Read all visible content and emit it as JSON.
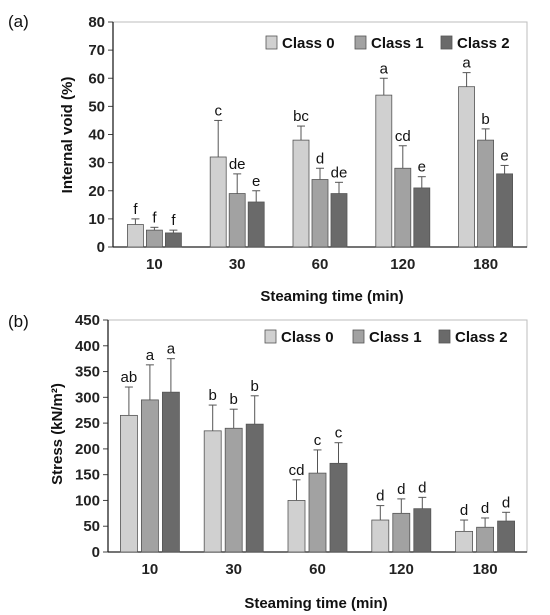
{
  "chart_data": [
    {
      "type": "bar",
      "panel_label": "(a)",
      "categories": [
        "10",
        "30",
        "60",
        "120",
        "180"
      ],
      "xlabel": "Steaming time (min)",
      "ylabel": "Internal void (%)",
      "ylim": [
        0,
        80
      ],
      "yticks": [
        "0",
        "10",
        "20",
        "30",
        "40",
        "50",
        "60",
        "70",
        "80"
      ],
      "legend_position": "top-right",
      "series": [
        {
          "name": "Class 0",
          "color": "#d0d0d0",
          "values": [
            8,
            32,
            38,
            54,
            57
          ],
          "errors": [
            2,
            13,
            5,
            6,
            5
          ],
          "letters": [
            "f",
            "c",
            "bc",
            "a",
            "a"
          ]
        },
        {
          "name": "Class 1",
          "color": "#a2a2a2",
          "values": [
            6,
            19,
            24,
            28,
            38
          ],
          "errors": [
            1,
            7,
            4,
            8,
            4
          ],
          "letters": [
            "f",
            "de",
            "d",
            "cd",
            "b"
          ]
        },
        {
          "name": "Class 2",
          "color": "#6a6a6a",
          "values": [
            5,
            16,
            19,
            21,
            26
          ],
          "errors": [
            1,
            4,
            4,
            4,
            3
          ],
          "letters": [
            "f",
            "e",
            "de",
            "e",
            "e"
          ]
        }
      ]
    },
    {
      "type": "bar",
      "panel_label": "(b)",
      "categories": [
        "10",
        "30",
        "60",
        "120",
        "180"
      ],
      "xlabel": "Steaming time (min)",
      "ylabel": "Stress (kN/m²)",
      "ylim": [
        0,
        450
      ],
      "yticks": [
        "0",
        "50",
        "100",
        "150",
        "200",
        "250",
        "300",
        "350",
        "400",
        "450"
      ],
      "legend_position": "top-right",
      "series": [
        {
          "name": "Class 0",
          "color": "#d0d0d0",
          "values": [
            265,
            235,
            100,
            62,
            40
          ],
          "errors": [
            55,
            50,
            40,
            28,
            22
          ],
          "letters": [
            "ab",
            "b",
            "cd",
            "d",
            "d"
          ]
        },
        {
          "name": "Class 1",
          "color": "#a2a2a2",
          "values": [
            295,
            240,
            153,
            75,
            48
          ],
          "errors": [
            68,
            37,
            45,
            28,
            18
          ],
          "letters": [
            "a",
            "b",
            "c",
            "d",
            "d"
          ]
        },
        {
          "name": "Class 2",
          "color": "#6a6a6a",
          "values": [
            310,
            248,
            172,
            84,
            60
          ],
          "errors": [
            65,
            55,
            40,
            22,
            17
          ],
          "letters": [
            "a",
            "b",
            "c",
            "d",
            "d"
          ]
        }
      ]
    }
  ]
}
